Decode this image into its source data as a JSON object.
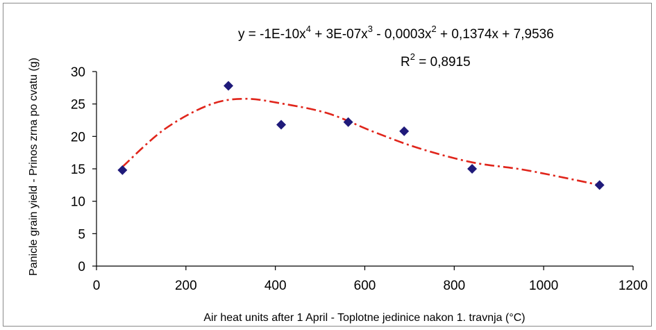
{
  "chart_data": {
    "type": "scatter",
    "xlabel": "Air heat units after 1 April - Toplotne jedinice nakon 1. travnja (°C)",
    "ylabel": "Panicle grain yield - Prinos zrna po cvatu (g)",
    "xlim": [
      0,
      1200
    ],
    "ylim": [
      0,
      30
    ],
    "x_ticks": [
      "0",
      "200",
      "400",
      "600",
      "800",
      "1000",
      "1200"
    ],
    "y_ticks": [
      "0",
      "5",
      "10",
      "15",
      "20",
      "25",
      "30"
    ],
    "points": [
      {
        "x": 58,
        "y": 14.8
      },
      {
        "x": 295,
        "y": 27.8
      },
      {
        "x": 413,
        "y": 21.8
      },
      {
        "x": 563,
        "y": 22.2
      },
      {
        "x": 688,
        "y": 20.8
      },
      {
        "x": 840,
        "y": 15.0
      },
      {
        "x": 1125,
        "y": 12.5
      }
    ],
    "trendline": {
      "type": "polynomial",
      "coefficients": [
        -1e-10,
        3e-07,
        -0.0003,
        0.1374,
        7.9536
      ],
      "x_range": [
        58,
        1125
      ]
    },
    "equation": {
      "main": "y = -1E-10x",
      "exp1": "4",
      "part2": " + 3E-07x",
      "exp2": "3",
      "part3": " - 0,0003x",
      "exp3": "2",
      "part4": " + 0,1374x + 7,9536"
    },
    "r_squared": {
      "prefix": "R",
      "exp": "2",
      "value": " = 0,8915"
    },
    "colors": {
      "marker": "#1f1a7a",
      "trendline": "#e0251b",
      "axis": "#000000",
      "frame": "#8a8a8a"
    }
  }
}
